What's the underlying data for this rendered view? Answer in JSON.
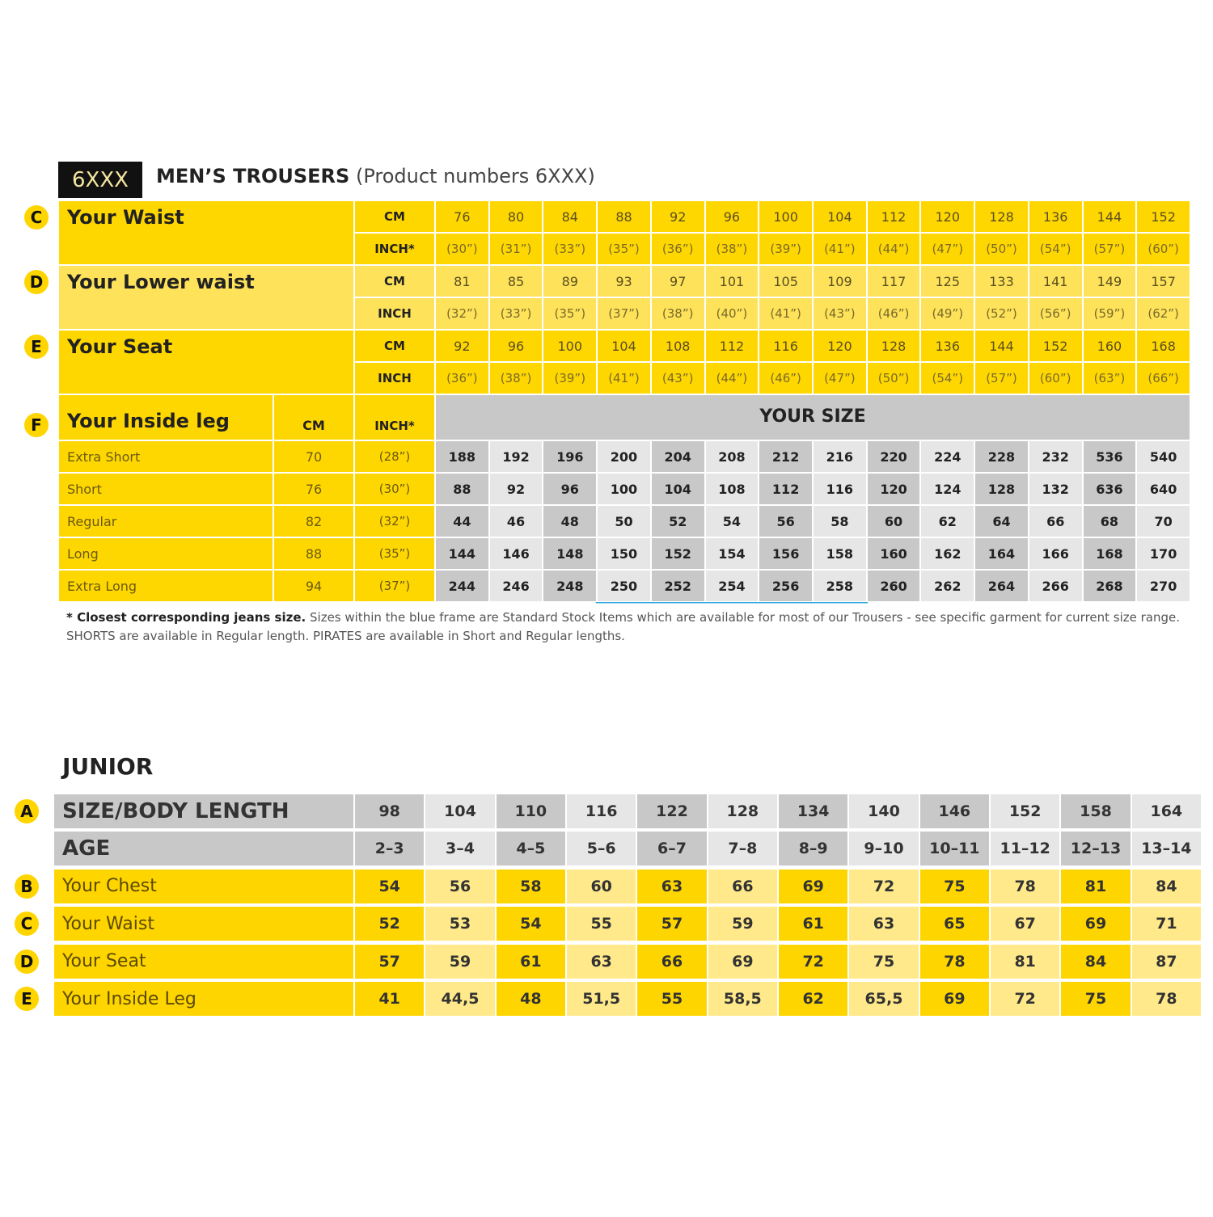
{
  "badge": "6XXX",
  "title": "MEN’S TROUSERS",
  "subtitle": "(Product numbers 6XXX)",
  "measurements": [
    {
      "letter": "C",
      "label": "Your Waist",
      "rows": [
        {
          "unit": "CM",
          "values": [
            76,
            80,
            84,
            88,
            92,
            96,
            100,
            104,
            112,
            120,
            128,
            136,
            144,
            152
          ]
        },
        {
          "unit": "INCH*",
          "values": [
            "(30”)",
            "(31”)",
            "(33”)",
            "(35”)",
            "(36”)",
            "(38”)",
            "(39”)",
            "(41”)",
            "(44”)",
            "(47”)",
            "(50”)",
            "(54”)",
            "(57”)",
            "(60”)"
          ]
        }
      ]
    },
    {
      "letter": "D",
      "label": "Your Lower waist",
      "rows": [
        {
          "unit": "CM",
          "values": [
            81,
            85,
            89,
            93,
            97,
            101,
            105,
            109,
            117,
            125,
            133,
            141,
            149,
            157
          ]
        },
        {
          "unit": "INCH",
          "values": [
            "(32”)",
            "(33”)",
            "(35”)",
            "(37”)",
            "(38”)",
            "(40”)",
            "(41”)",
            "(43”)",
            "(46”)",
            "(49”)",
            "(52”)",
            "(56”)",
            "(59”)",
            "(62”)"
          ]
        }
      ]
    },
    {
      "letter": "E",
      "label": "Your Seat",
      "rows": [
        {
          "unit": "CM",
          "values": [
            92,
            96,
            100,
            104,
            108,
            112,
            116,
            120,
            128,
            136,
            144,
            152,
            160,
            168
          ]
        },
        {
          "unit": "INCH",
          "values": [
            "(36”)",
            "(38”)",
            "(39”)",
            "(41”)",
            "(43”)",
            "(44”)",
            "(46”)",
            "(47”)",
            "(50”)",
            "(54”)",
            "(57”)",
            "(60”)",
            "(63”)",
            "(66”)"
          ]
        }
      ]
    }
  ],
  "inside_leg": {
    "letter": "F",
    "label": "Your Inside leg",
    "cm_header": "CM",
    "inch_header": "INCH*",
    "size_header": "YOUR SIZE",
    "rows": [
      {
        "name": "Extra Short",
        "cm": 70,
        "inch": "(28”)",
        "sizes": [
          188,
          192,
          196,
          200,
          204,
          208,
          212,
          216,
          220,
          224,
          228,
          232,
          536,
          540
        ]
      },
      {
        "name": "Short",
        "cm": 76,
        "inch": "(30”)",
        "sizes": [
          88,
          92,
          96,
          100,
          104,
          108,
          112,
          116,
          120,
          124,
          128,
          132,
          636,
          640
        ]
      },
      {
        "name": "Regular",
        "cm": 82,
        "inch": "(32”)",
        "sizes": [
          44,
          46,
          48,
          50,
          52,
          54,
          56,
          58,
          60,
          62,
          64,
          66,
          68,
          70
        ]
      },
      {
        "name": "Long",
        "cm": 88,
        "inch": "(35”)",
        "sizes": [
          144,
          146,
          148,
          150,
          152,
          154,
          156,
          158,
          160,
          162,
          164,
          166,
          168,
          170
        ]
      },
      {
        "name": "Extra Long",
        "cm": 94,
        "inch": "(37”)",
        "sizes": [
          244,
          246,
          248,
          250,
          252,
          254,
          256,
          258,
          260,
          262,
          264,
          266,
          268,
          270
        ]
      }
    ]
  },
  "footnote": {
    "bold": "* Closest corresponding jeans size.",
    "text": "Sizes within the blue frame are Standard Stock Items which are available for most of our Trousers - see specific garment for current size range. SHORTS are available in Regular length. PIRATES are available in Short and Regular lengths."
  },
  "junior": {
    "title": "JUNIOR",
    "rows": [
      {
        "letter": "A",
        "label": "SIZE/BODY LENGTH",
        "values": [
          98,
          104,
          110,
          116,
          122,
          128,
          134,
          140,
          146,
          152,
          158,
          164
        ]
      },
      {
        "label": "AGE",
        "values": [
          "2–3",
          "3–4",
          "4–5",
          "5–6",
          "6–7",
          "7–8",
          "8–9",
          "9–10",
          "10–11",
          "11–12",
          "12–13",
          "13–14"
        ]
      },
      {
        "letter": "B",
        "label": "Your Chest",
        "values": [
          54,
          56,
          58,
          60,
          63,
          66,
          69,
          72,
          75,
          78,
          81,
          84
        ]
      },
      {
        "letter": "C",
        "label": "Your Waist",
        "values": [
          52,
          53,
          54,
          55,
          57,
          59,
          61,
          63,
          65,
          67,
          69,
          71
        ]
      },
      {
        "letter": "D",
        "label": "Your Seat",
        "values": [
          57,
          59,
          61,
          63,
          66,
          69,
          72,
          75,
          78,
          81,
          84,
          87
        ]
      },
      {
        "letter": "E",
        "label": "Your Inside Leg",
        "values": [
          41,
          "44,5",
          48,
          "51,5",
          55,
          "58,5",
          62,
          "65,5",
          69,
          72,
          75,
          78
        ]
      }
    ]
  }
}
